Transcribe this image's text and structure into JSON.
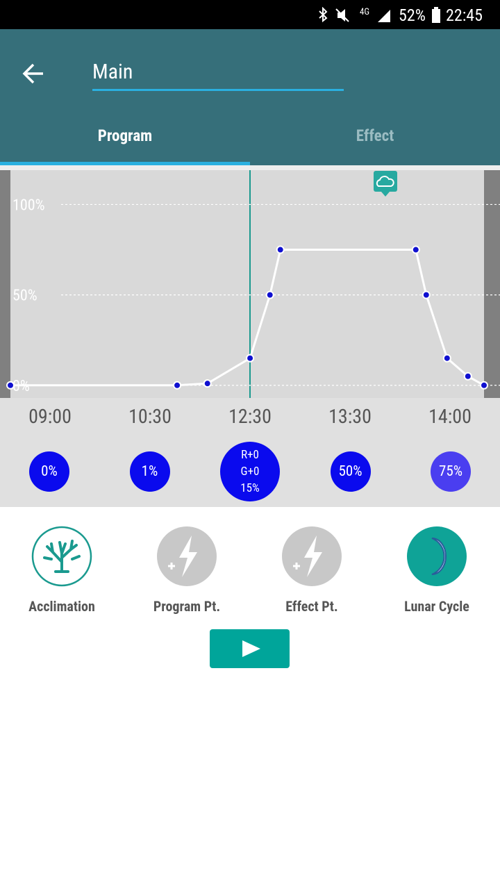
{
  "status_bar": {
    "network": "4G",
    "battery": "52%",
    "time": "22:45"
  },
  "header": {
    "title": "Main",
    "tabs": [
      "Program",
      "Effect"
    ]
  },
  "chart_data": {
    "type": "line",
    "x": [
      0,
      35.2,
      41.6,
      50.6,
      54.8,
      57,
      85.6,
      87.8,
      92.2,
      96.6,
      100
    ],
    "xlim": [
      0,
      100
    ],
    "ylim": [
      -7,
      119
    ],
    "yticks": [
      {
        "value": 0,
        "label": "0%"
      },
      {
        "value": 50,
        "label": "50%"
      },
      {
        "value": 100,
        "label": "100%"
      }
    ],
    "grid": true,
    "series": [
      {
        "color": "#ffffff",
        "values": [
          0,
          0,
          1,
          15,
          50,
          75,
          75,
          50,
          15,
          5,
          0
        ]
      }
    ]
  },
  "time_labels": [
    "09:00",
    "10:30",
    "12:30",
    "13:30",
    "14:00"
  ],
  "point_levels": [
    [
      "0%"
    ],
    [
      "1%"
    ],
    [
      "R+0",
      "G+0",
      "15%"
    ],
    [
      "50%"
    ],
    [
      "75%"
    ]
  ],
  "actions": [
    "Acclimation",
    "Program Pt.",
    "Effect Pt.",
    "Lunar Cycle"
  ]
}
